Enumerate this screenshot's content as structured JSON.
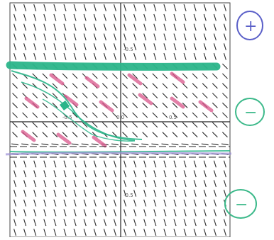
{
  "figure": {
    "description_type": "slope field with hand-drawn equilibrium annotations",
    "axis_tick_labels": {
      "y_top": "-0.5",
      "y_bottom": "-0.5",
      "x_left": "-0.5",
      "x_right": "0.5",
      "origin": "0.0"
    },
    "equilibrium_marks": [
      {
        "symbol": "+",
        "ink_color": "#5a5fc8"
      },
      {
        "symbol": "−",
        "ink_color": "#3cb98a"
      },
      {
        "symbol": "−",
        "ink_color": "#3cb98a"
      }
    ],
    "colors": {
      "slope_segment": "#2b2b2b",
      "highlighter_green": "#2bb58a",
      "highlighter_pink": "#d9558a",
      "highlighter_purple": "#9b8fd6",
      "axis": "#222222"
    }
  }
}
